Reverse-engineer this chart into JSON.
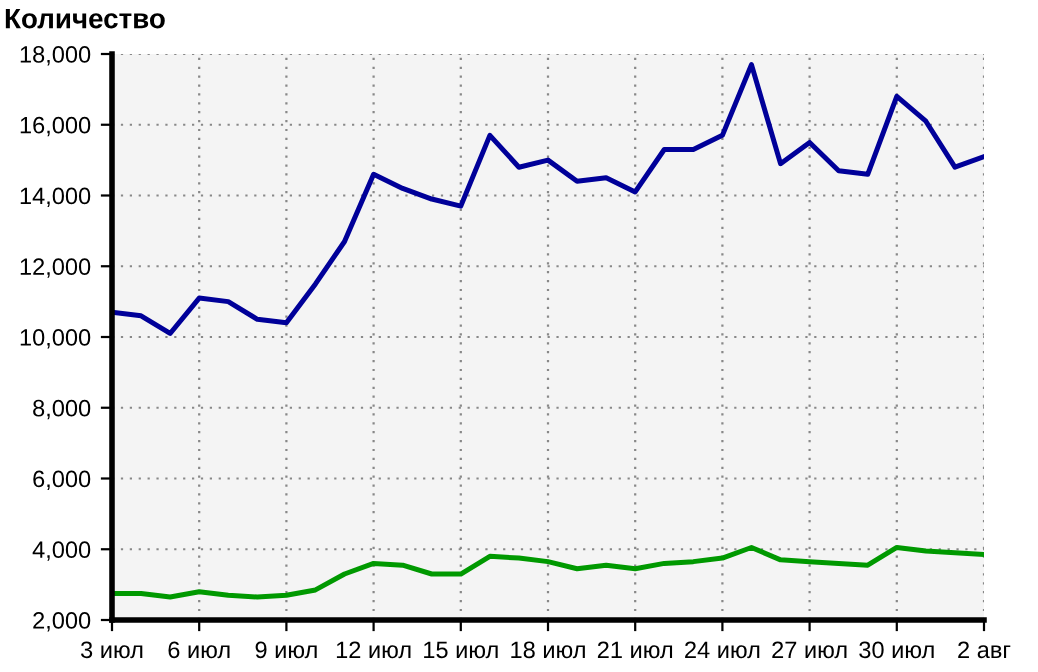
{
  "chart_data": {
    "type": "line",
    "title": "Количество",
    "categories": [
      "3 июл",
      null,
      null,
      "6 июл",
      null,
      null,
      "9 июл",
      null,
      null,
      "12 июл",
      null,
      null,
      "15 июл",
      null,
      null,
      "18 июл",
      null,
      null,
      "21 июл",
      null,
      null,
      "24 июл",
      null,
      null,
      "27 июл",
      null,
      null,
      "30 июл",
      null,
      null,
      "2 авг"
    ],
    "series": [
      {
        "color": "#000099",
        "values": [
          10700,
          10600,
          10100,
          11100,
          11000,
          10500,
          10400,
          11500,
          12700,
          14600,
          14200,
          13900,
          13700,
          15700,
          14800,
          15000,
          14400,
          14500,
          14100,
          15300,
          15300,
          15700,
          17700,
          14900,
          15500,
          14700,
          14600,
          16800,
          16100,
          14800,
          15100
        ]
      },
      {
        "color": "#009900",
        "values": [
          2750,
          2750,
          2650,
          2800,
          2700,
          2650,
          2700,
          2850,
          3300,
          3600,
          3550,
          3300,
          3300,
          3800,
          3750,
          3650,
          3450,
          3550,
          3450,
          3600,
          3650,
          3750,
          4050,
          3700,
          3650,
          3600,
          3550,
          4050,
          3950,
          3900,
          3850
        ]
      }
    ],
    "ylim": [
      2000,
      18000
    ],
    "yticks": [
      {
        "value": 2000,
        "label": "2,000"
      },
      {
        "value": 4000,
        "label": "4,000"
      },
      {
        "value": 6000,
        "label": "6,000"
      },
      {
        "value": 8000,
        "label": "8,000"
      },
      {
        "value": 10000,
        "label": "10,000"
      },
      {
        "value": 12000,
        "label": "12,000"
      },
      {
        "value": 14000,
        "label": "14,000"
      },
      {
        "value": 16000,
        "label": "16,000"
      },
      {
        "value": 18000,
        "label": "18,000"
      }
    ],
    "grid": true,
    "marker": "none",
    "line_style": "solid"
  }
}
